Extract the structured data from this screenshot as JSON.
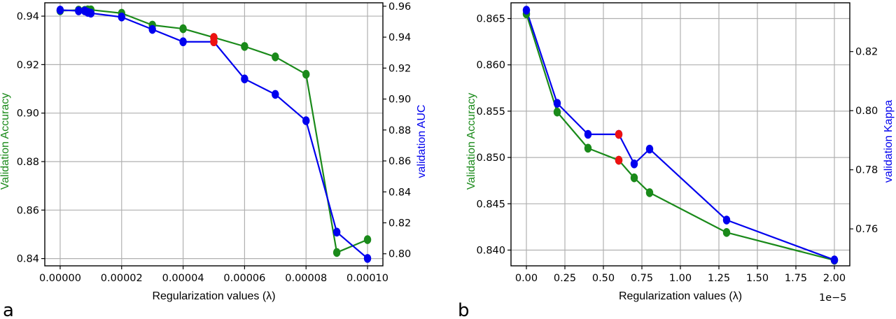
{
  "panels": {
    "a": "a",
    "b": "b"
  },
  "chart_data": [
    {
      "type": "line",
      "panel": "a",
      "xlabel": "Regularization values (λ)",
      "ylabel_left": "Validation Accuracy",
      "ylabel_right": "validation AUC",
      "xlim": [
        -5e-06,
        0.000105
      ],
      "ylim_left": [
        0.837,
        0.9455
      ],
      "ylim_right": [
        0.7922,
        0.9622
      ],
      "xticks": [
        "0.00000",
        "0.00002",
        "0.00004",
        "0.00006",
        "0.00008",
        "0.00010"
      ],
      "xtick_values": [
        0,
        2e-05,
        4e-05,
        6e-05,
        8e-05,
        0.0001
      ],
      "yticks_left": [
        "0.84",
        "0.86",
        "0.88",
        "0.90",
        "0.92",
        "0.94"
      ],
      "ytick_left_values": [
        0.84,
        0.86,
        0.88,
        0.9,
        0.92,
        0.94
      ],
      "yticks_right": [
        "0.80",
        "0.82",
        "0.84",
        "0.86",
        "0.88",
        "0.90",
        "0.92",
        "0.94",
        "0.96"
      ],
      "ytick_right_values": [
        0.8,
        0.82,
        0.84,
        0.86,
        0.88,
        0.9,
        0.92,
        0.94,
        0.96
      ],
      "grid": true,
      "colors": {
        "left": "#1a8a1a",
        "right": "#0000ee",
        "highlight": "#ee1111"
      },
      "series": [
        {
          "axis": "left",
          "color": "#1a8a1a",
          "x": [
            0,
            6e-06,
            8e-06,
            9e-06,
            1e-05,
            2e-05,
            3e-05,
            4e-05,
            5e-05,
            6e-05,
            7e-05,
            8e-05,
            9e-05,
            0.0001
          ],
          "y": [
            0.9422,
            0.9425,
            0.9424,
            0.9426,
            0.9426,
            0.9412,
            0.9363,
            0.9348,
            0.9312,
            0.9275,
            0.9232,
            0.916,
            0.8425,
            0.8478
          ]
        },
        {
          "axis": "right",
          "color": "#0000ee",
          "x": [
            0,
            6e-06,
            8e-06,
            9e-06,
            1e-05,
            2e-05,
            3e-05,
            4e-05,
            5e-05,
            6e-05,
            7e-05,
            8e-05,
            9e-05,
            0.0001
          ],
          "y": [
            0.9575,
            0.957,
            0.957,
            0.956,
            0.9555,
            0.953,
            0.945,
            0.937,
            0.937,
            0.913,
            0.903,
            0.886,
            0.814,
            0.797
          ]
        }
      ],
      "highlight_points": [
        {
          "axis": "left",
          "x": 5e-05,
          "y": 0.9312
        },
        {
          "axis": "right",
          "x": 5e-05,
          "y": 0.937
        }
      ]
    },
    {
      "type": "line",
      "panel": "b",
      "xlabel": "Regularization values (λ)",
      "x_offset_label": "1e−5",
      "ylabel_left": "Validation Accuracy",
      "ylabel_right": "validation Kappa",
      "xlim": [
        -0.1,
        2.1
      ],
      "ylim_left": [
        0.8383,
        0.8667
      ],
      "ylim_right": [
        0.7475,
        0.8365
      ],
      "xticks": [
        "0.00",
        "0.25",
        "0.50",
        "0.75",
        "1.00",
        "1.25",
        "1.50",
        "1.75",
        "2.00"
      ],
      "xtick_values": [
        0,
        0.25,
        0.5,
        0.75,
        1.0,
        1.25,
        1.5,
        1.75,
        2.0
      ],
      "yticks_left": [
        "0.840",
        "0.845",
        "0.850",
        "0.855",
        "0.860",
        "0.865"
      ],
      "ytick_left_values": [
        0.84,
        0.845,
        0.85,
        0.855,
        0.86,
        0.865
      ],
      "yticks_right": [
        "0.76",
        "0.78",
        "0.80",
        "0.82"
      ],
      "ytick_right_values": [
        0.76,
        0.78,
        0.8,
        0.82
      ],
      "grid": true,
      "colors": {
        "left": "#1a8a1a",
        "right": "#0000ee",
        "highlight": "#ee1111"
      },
      "series": [
        {
          "axis": "left",
          "color": "#1a8a1a",
          "x": [
            0,
            0.2,
            0.4,
            0.6,
            0.7,
            0.8,
            1.3,
            2.0
          ],
          "y": [
            0.8655,
            0.8549,
            0.851,
            0.8497,
            0.8478,
            0.8462,
            0.8419,
            0.8389
          ]
        },
        {
          "axis": "right",
          "color": "#0000ee",
          "x": [
            0,
            0.2,
            0.4,
            0.6,
            0.7,
            0.8,
            1.3,
            2.0
          ],
          "y": [
            0.834,
            0.8025,
            0.792,
            0.792,
            0.782,
            0.787,
            0.763,
            0.7495
          ]
        }
      ],
      "highlight_points": [
        {
          "axis": "left",
          "x": 0.6,
          "y": 0.8497
        },
        {
          "axis": "right",
          "x": 0.6,
          "y": 0.792
        }
      ]
    }
  ]
}
